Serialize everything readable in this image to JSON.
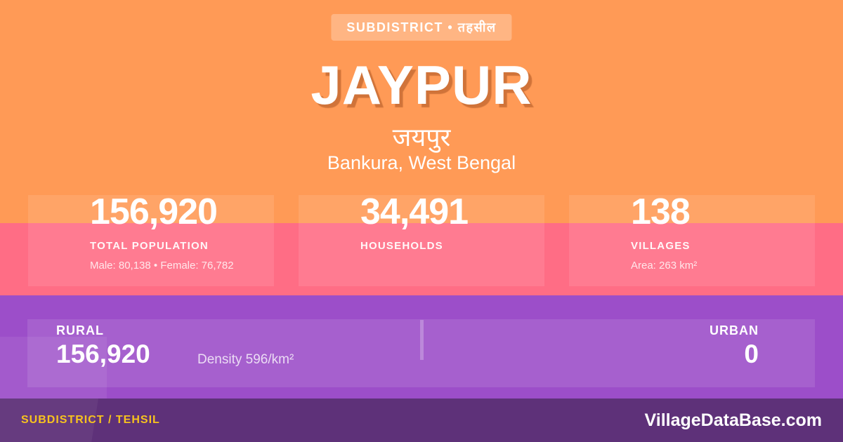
{
  "badge": {
    "label": "SUBDISTRICT • तहसील"
  },
  "header": {
    "title": "JAYPUR",
    "native_name": "जयपुर",
    "location": "Bankura, West Bengal"
  },
  "stats": [
    {
      "value": "156,920",
      "label": "TOTAL POPULATION",
      "sublabel": "Male: 80,138 • Female: 76,782"
    },
    {
      "value": "34,491",
      "label": "HOUSEHOLDS",
      "sublabel": ""
    },
    {
      "value": "138",
      "label": "VILLAGES",
      "sublabel": "Area: 263 km²"
    }
  ],
  "breakdown": {
    "rural": {
      "label": "RURAL",
      "value": "156,920"
    },
    "urban": {
      "label": "URBAN",
      "value": "0"
    },
    "density": "Density 596/km²"
  },
  "footer": {
    "category": "SUBDISTRICT / TEHSIL",
    "brand": "VillageDataBase.com"
  },
  "colors": {
    "orange": "#ff9a56",
    "pink": "#ff6d85",
    "purple": "#9c4ec9",
    "footer-purple": "#5e3179",
    "yellow": "#f7c31e"
  }
}
